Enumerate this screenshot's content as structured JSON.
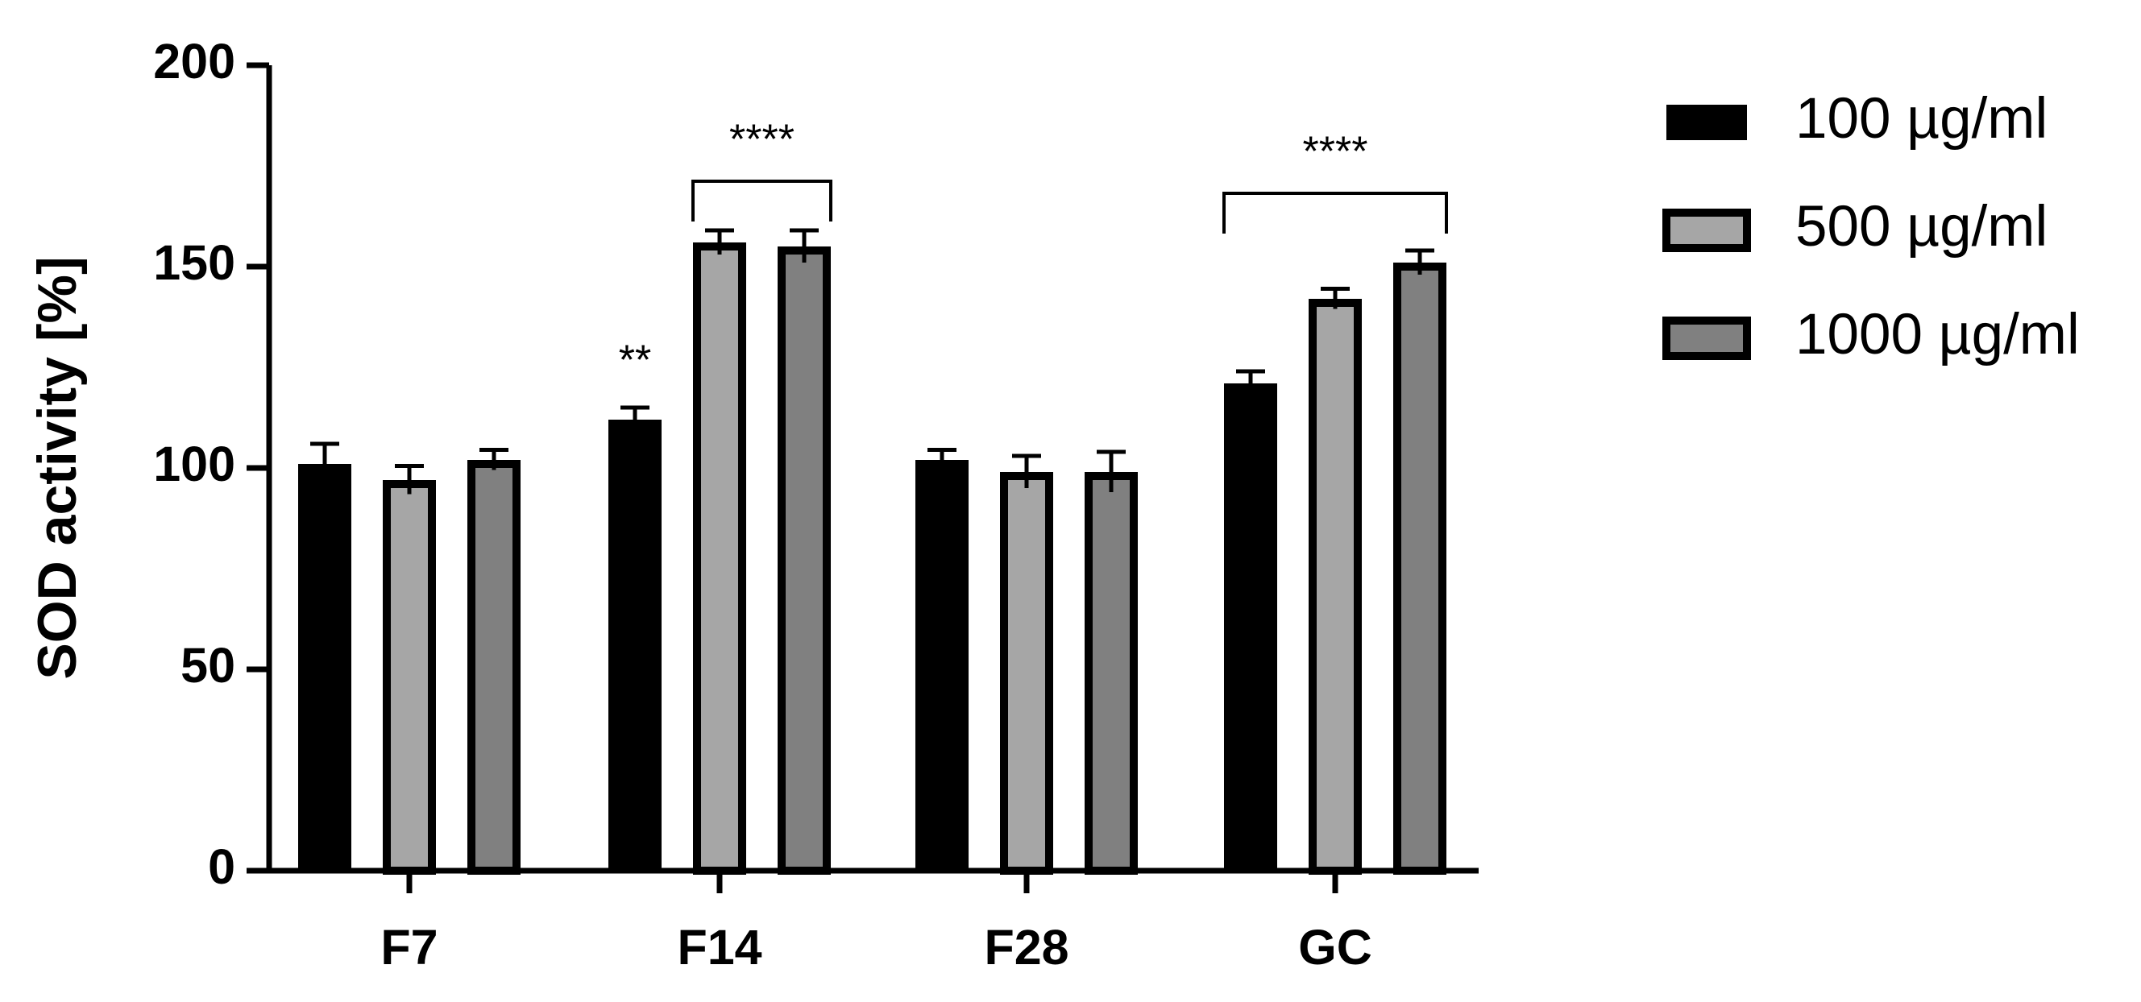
{
  "chart_data": {
    "type": "bar",
    "y_label": "SOD activity [%]",
    "categories": [
      "F7",
      "F14",
      "F28",
      "GC"
    ],
    "series": [
      {
        "name": "100 µg/ml",
        "color": "#000000",
        "values": [
          101,
          112,
          102,
          121
        ],
        "errors": [
          5,
          3,
          2.5,
          3
        ]
      },
      {
        "name": "500 µg/ml",
        "color": "#a6a6a6",
        "values": [
          97,
          156,
          99,
          142
        ],
        "errors": [
          3.5,
          3,
          4,
          2.5
        ]
      },
      {
        "name": "1000 µg/ml",
        "color": "#808080",
        "values": [
          102,
          155,
          99,
          151
        ],
        "errors": [
          2.5,
          4,
          5,
          3
        ]
      }
    ],
    "annotations": [
      "**",
      "****",
      "****"
    ],
    "ylim": [
      0,
      200
    ],
    "yticks": [
      0,
      50,
      100,
      150,
      200
    ],
    "grid": false,
    "legend": "right"
  }
}
